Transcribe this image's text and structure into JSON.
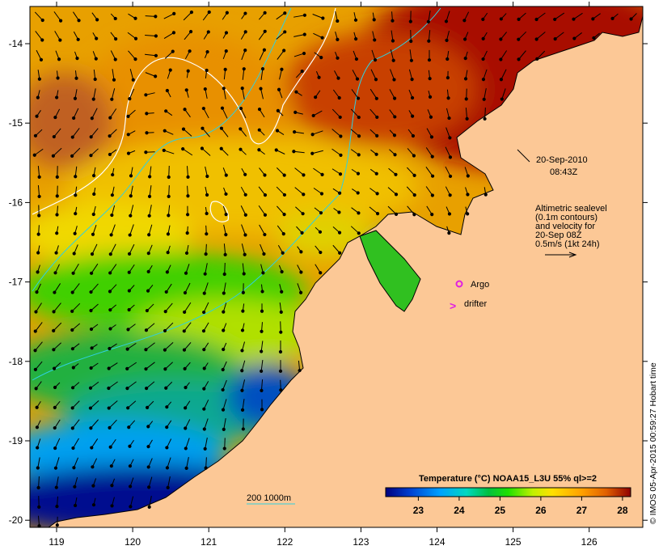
{
  "map": {
    "lon_ticks": [
      "119",
      "120",
      "121",
      "122",
      "123",
      "124",
      "125",
      "126"
    ],
    "lat_ticks": [
      "-14",
      "-15",
      "-16",
      "-17",
      "-18",
      "-19",
      "-20"
    ],
    "date": "20-Sep-2010",
    "time": "08:43Z",
    "legend_lines": [
      "Altimetric sealevel",
      "(0.1m contours)",
      "and velocity for",
      "20-Sep 08Z",
      "0.5m/s (1kt 24h)"
    ],
    "argo_label": "Argo",
    "drifter_label": "drifter",
    "drifter_symbol": ">",
    "isobath_label": "200  1000m",
    "credit": "© IMOS 05-Apr-2015 00:59:27 Hobart time",
    "colors": {
      "land": "#fcc896",
      "argo": "#e020e0",
      "contour": "#ffffff",
      "isobath": "#30d0e0"
    }
  },
  "colorbar": {
    "title": "Temperature (°C) NOAA15_L3U 55% ql>=2",
    "ticks": [
      "23",
      "24",
      "25",
      "26",
      "27",
      "28"
    ],
    "range": [
      22.2,
      28.2
    ],
    "colors": [
      "#00007f",
      "#0040d0",
      "#00a0ff",
      "#00d8c0",
      "#00c040",
      "#20e000",
      "#c0f000",
      "#ffe000",
      "#ffa000",
      "#e06000",
      "#900000"
    ]
  }
}
